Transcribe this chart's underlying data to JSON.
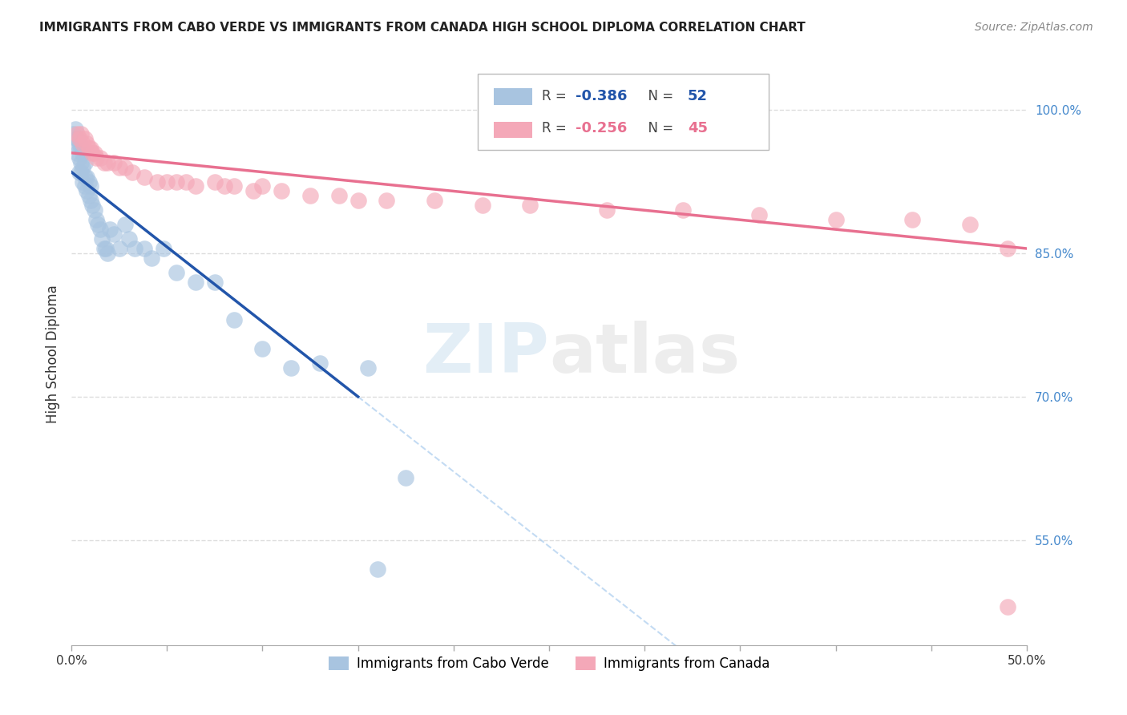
{
  "title": "IMMIGRANTS FROM CABO VERDE VS IMMIGRANTS FROM CANADA HIGH SCHOOL DIPLOMA CORRELATION CHART",
  "source": "Source: ZipAtlas.com",
  "ylabel": "High School Diploma",
  "yticks_right": [
    "100.0%",
    "85.0%",
    "70.0%",
    "55.0%"
  ],
  "ytick_vals": [
    1.0,
    0.85,
    0.7,
    0.55
  ],
  "xlim": [
    0.0,
    0.5
  ],
  "ylim": [
    0.44,
    1.05
  ],
  "R_blue": -0.386,
  "N_blue": 52,
  "R_pink": -0.256,
  "N_pink": 45,
  "color_blue": "#a8c4e0",
  "color_pink": "#f4a8b8",
  "line_blue": "#2255aa",
  "line_pink": "#e87090",
  "watermark_zip": "ZIP",
  "watermark_atlas": "atlas",
  "cabo_verde_x": [
    0.001,
    0.002,
    0.002,
    0.003,
    0.003,
    0.003,
    0.004,
    0.004,
    0.004,
    0.005,
    0.005,
    0.005,
    0.006,
    0.006,
    0.006,
    0.007,
    0.007,
    0.007,
    0.008,
    0.008,
    0.009,
    0.009,
    0.01,
    0.01,
    0.011,
    0.012,
    0.013,
    0.014,
    0.015,
    0.016,
    0.017,
    0.018,
    0.019,
    0.02,
    0.022,
    0.025,
    0.028,
    0.03,
    0.033,
    0.038,
    0.042,
    0.048,
    0.055,
    0.065,
    0.075,
    0.085,
    0.1,
    0.115,
    0.13,
    0.155,
    0.16,
    0.175
  ],
  "cabo_verde_y": [
    0.975,
    0.965,
    0.98,
    0.97,
    0.955,
    0.97,
    0.965,
    0.95,
    0.935,
    0.96,
    0.945,
    0.935,
    0.955,
    0.94,
    0.925,
    0.945,
    0.93,
    0.92,
    0.93,
    0.915,
    0.925,
    0.91,
    0.92,
    0.905,
    0.9,
    0.895,
    0.885,
    0.88,
    0.875,
    0.865,
    0.855,
    0.855,
    0.85,
    0.875,
    0.87,
    0.855,
    0.88,
    0.865,
    0.855,
    0.855,
    0.845,
    0.855,
    0.83,
    0.82,
    0.82,
    0.78,
    0.75,
    0.73,
    0.735,
    0.73,
    0.52,
    0.615
  ],
  "canada_x": [
    0.003,
    0.004,
    0.005,
    0.006,
    0.007,
    0.008,
    0.009,
    0.01,
    0.011,
    0.012,
    0.013,
    0.015,
    0.017,
    0.019,
    0.022,
    0.025,
    0.028,
    0.032,
    0.038,
    0.045,
    0.055,
    0.065,
    0.075,
    0.085,
    0.095,
    0.11,
    0.125,
    0.14,
    0.165,
    0.19,
    0.215,
    0.24,
    0.28,
    0.32,
    0.36,
    0.4,
    0.44,
    0.47,
    0.49,
    0.05,
    0.06,
    0.08,
    0.1,
    0.15,
    0.49
  ],
  "canada_y": [
    0.975,
    0.97,
    0.975,
    0.965,
    0.97,
    0.965,
    0.96,
    0.96,
    0.955,
    0.955,
    0.95,
    0.95,
    0.945,
    0.945,
    0.945,
    0.94,
    0.94,
    0.935,
    0.93,
    0.925,
    0.925,
    0.92,
    0.925,
    0.92,
    0.915,
    0.915,
    0.91,
    0.91,
    0.905,
    0.905,
    0.9,
    0.9,
    0.895,
    0.895,
    0.89,
    0.885,
    0.885,
    0.88,
    0.855,
    0.925,
    0.925,
    0.92,
    0.92,
    0.905,
    0.48
  ]
}
